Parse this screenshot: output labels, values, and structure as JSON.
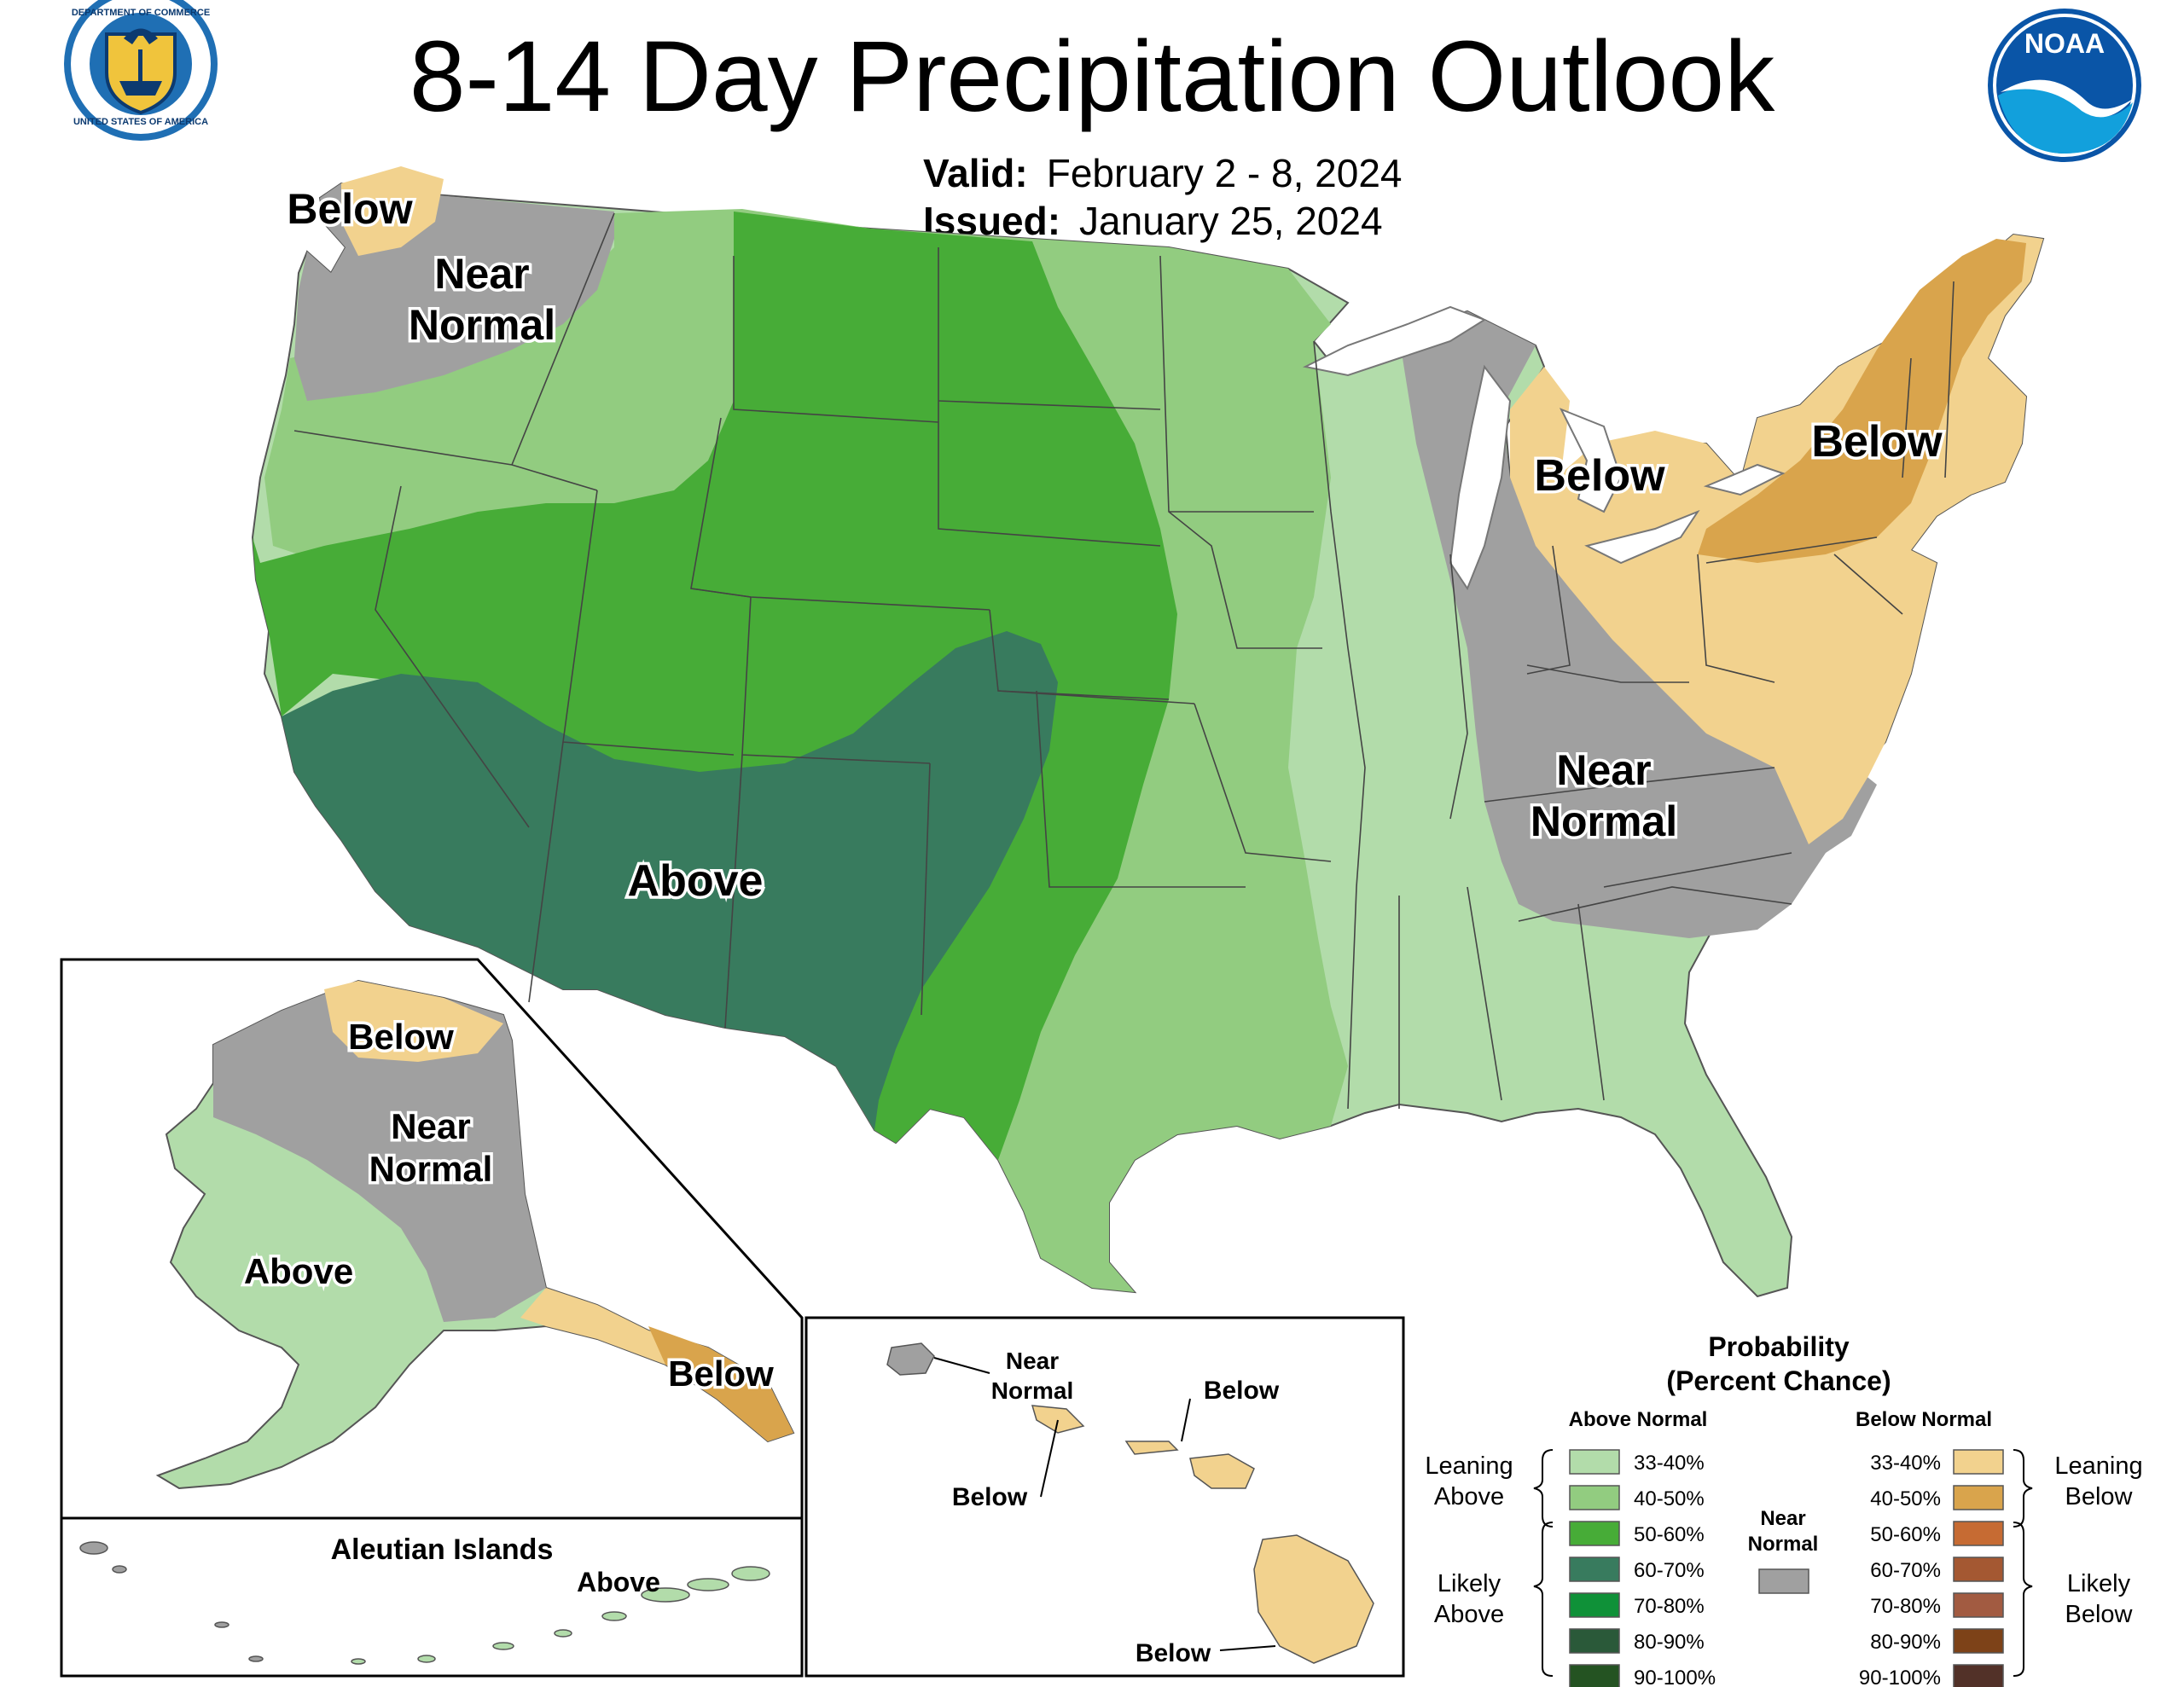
{
  "title": "8-14 Day Precipitation Outlook",
  "valid_label": "Valid:",
  "valid_value": "February 2 - 8, 2024",
  "issued_label": "Issued:",
  "issued_value": "January 25, 2024",
  "logos": {
    "left": "Department of Commerce seal",
    "left_text_top": "DEPARTMENT OF COMMERCE",
    "left_text_bottom": "UNITED STATES OF AMERICA",
    "right": "NOAA",
    "right_text": "NOAA"
  },
  "map_labels": {
    "nw_below": "Below",
    "nw_near_1": "Near",
    "nw_near_2": "Normal",
    "ne_below_1": "Below",
    "ne_below_2": "Below",
    "se_near_1": "Near",
    "se_near_2": "Normal",
    "sw_above": "Above"
  },
  "alaska_labels": {
    "north_below": "Below",
    "near_1": "Near",
    "near_2": "Normal",
    "above": "Above",
    "se_below": "Below"
  },
  "aleutian": {
    "title": "Aleutian Islands",
    "above": "Above"
  },
  "hawaii_labels": {
    "near_1": "Near",
    "near_2": "Normal",
    "below_1": "Below",
    "below_2": "Below",
    "below_3": "Below"
  },
  "legend": {
    "title_1": "Probability",
    "title_2": "(Percent Chance)",
    "above_header": "Above Normal",
    "below_header": "Below Normal",
    "near_1": "Near",
    "near_2": "Normal",
    "leaning_above_1": "Leaning",
    "leaning_above_2": "Above",
    "likely_above_1": "Likely",
    "likely_above_2": "Above",
    "leaning_below_1": "Leaning",
    "leaning_below_2": "Below",
    "likely_below_1": "Likely",
    "likely_below_2": "Below",
    "above_items": [
      {
        "label": "33-40%",
        "color": "#b2dcaa"
      },
      {
        "label": "40-50%",
        "color": "#92cc80"
      },
      {
        "label": "50-60%",
        "color": "#47ac37"
      },
      {
        "label": "60-70%",
        "color": "#387b5e"
      },
      {
        "label": "70-80%",
        "color": "#0f9138"
      },
      {
        "label": "80-90%",
        "color": "#2a5939"
      },
      {
        "label": "90-100%",
        "color": "#245322"
      }
    ],
    "below_items": [
      {
        "label": "33-40%",
        "color": "#f2d28e"
      },
      {
        "label": "40-50%",
        "color": "#d9a44c"
      },
      {
        "label": "50-60%",
        "color": "#c66b33"
      },
      {
        "label": "60-70%",
        "color": "#a45832"
      },
      {
        "label": "70-80%",
        "color": "#a25b41"
      },
      {
        "label": "80-90%",
        "color": "#7d4218"
      },
      {
        "label": "90-100%",
        "color": "#523128"
      }
    ],
    "near_color": "#a0a0a0"
  }
}
